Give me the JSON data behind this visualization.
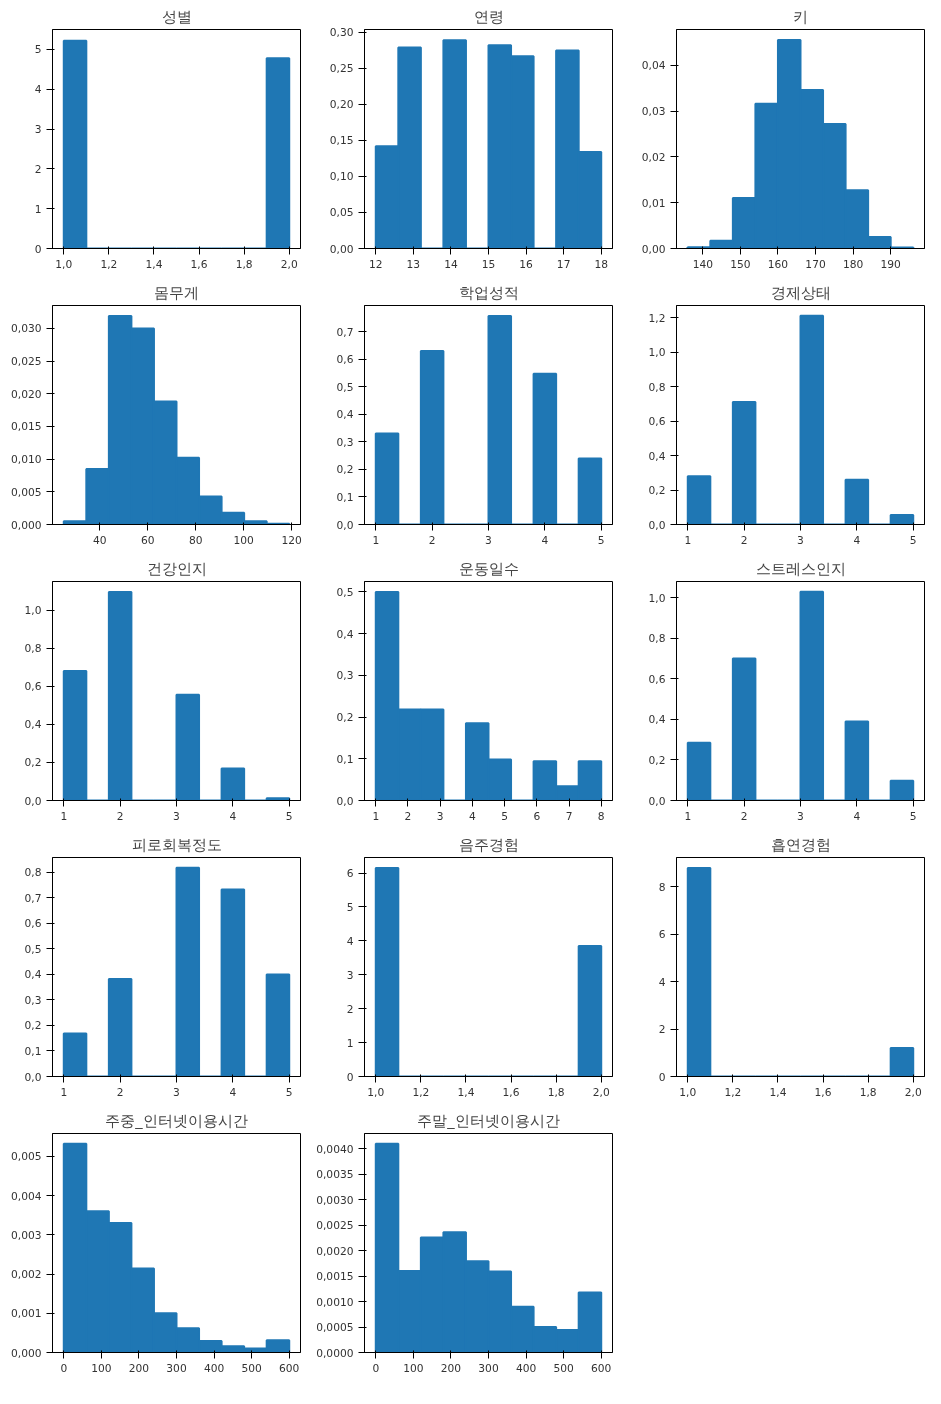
{
  "chart_data": [
    {
      "type": "histogram",
      "title": "성별",
      "color": "#1f77b4",
      "bins": [
        1.0,
        1.1,
        1.2,
        1.3,
        1.4,
        1.5,
        1.6,
        1.7,
        1.8,
        1.9,
        2.0
      ],
      "values": [
        5.22,
        0,
        0,
        0,
        0,
        0,
        0,
        0,
        0,
        4.78
      ],
      "xlim": [
        0.95,
        2.05
      ],
      "ylim": [
        0,
        5.5
      ],
      "xticks": [
        {
          "value": 1.0,
          "label": "1,0"
        },
        {
          "value": 1.2,
          "label": "1,2"
        },
        {
          "value": 1.4,
          "label": "1,4"
        },
        {
          "value": 1.6,
          "label": "1,6"
        },
        {
          "value": 1.8,
          "label": "1,8"
        },
        {
          "value": 2.0,
          "label": "2,0"
        }
      ],
      "yticks": [
        0,
        1,
        2,
        3,
        4,
        5
      ]
    },
    {
      "type": "histogram",
      "title": "연령",
      "color": "#1f77b4",
      "bins": [
        12,
        12.6,
        13.2,
        13.8,
        14.4,
        15,
        15.6,
        16.2,
        16.8,
        17.4,
        18
      ],
      "values": [
        0.142,
        0.279,
        0,
        0.289,
        0,
        0.282,
        0.267,
        0,
        0.275,
        0.134
      ],
      "xlim": [
        11.7,
        18.3
      ],
      "ylim": [
        0,
        0.304
      ],
      "xticks": [
        12,
        13,
        14,
        15,
        16,
        17,
        18
      ],
      "yticks": [
        {
          "value": 0,
          "label": "0,00"
        },
        {
          "value": 0.05,
          "label": "0,05"
        },
        {
          "value": 0.1,
          "label": "0,10"
        },
        {
          "value": 0.15,
          "label": "0,15"
        },
        {
          "value": 0.2,
          "label": "0,20"
        },
        {
          "value": 0.25,
          "label": "0,25"
        },
        {
          "value": 0.3,
          "label": "0,30"
        }
      ]
    },
    {
      "type": "histogram",
      "title": "키",
      "color": "#1f77b4",
      "bins": [
        136,
        142,
        148,
        154,
        160,
        166,
        172,
        178,
        184,
        190,
        196
      ],
      "values": [
        0.0003,
        0.0017,
        0.011,
        0.0316,
        0.0455,
        0.0346,
        0.0272,
        0.0127,
        0.0025,
        0.0002
      ],
      "xlim": [
        133,
        199
      ],
      "ylim": [
        0,
        0.0478
      ],
      "xticks": [
        140,
        150,
        160,
        170,
        180,
        190
      ],
      "yticks": [
        {
          "value": 0,
          "label": "0,00"
        },
        {
          "value": 0.01,
          "label": "0,01"
        },
        {
          "value": 0.02,
          "label": "0,02"
        },
        {
          "value": 0.03,
          "label": "0,03"
        },
        {
          "value": 0.04,
          "label": "0,04"
        }
      ]
    },
    {
      "type": "histogram",
      "title": "몸무게",
      "color": "#1f77b4",
      "bins": [
        25,
        34.4,
        43.8,
        53.2,
        62.6,
        72,
        81.4,
        90.8,
        100.2,
        109.6,
        119
      ],
      "values": [
        0.0005,
        0.0085,
        0.0319,
        0.03,
        0.0188,
        0.0102,
        0.0043,
        0.0018,
        0.0005,
        0.0001
      ],
      "xlim": [
        20.3,
        123.7
      ],
      "ylim": [
        0,
        0.0335
      ],
      "xticks": [
        40,
        60,
        80,
        100,
        120
      ],
      "yticks": [
        {
          "value": 0,
          "label": "0,000"
        },
        {
          "value": 0.005,
          "label": "0,005"
        },
        {
          "value": 0.01,
          "label": "0,010"
        },
        {
          "value": 0.015,
          "label": "0,015"
        },
        {
          "value": 0.02,
          "label": "0,020"
        },
        {
          "value": 0.025,
          "label": "0,025"
        },
        {
          "value": 0.03,
          "label": "0,030"
        }
      ]
    },
    {
      "type": "histogram",
      "title": "학업성적",
      "color": "#1f77b4",
      "bins": [
        1,
        1.4,
        1.8,
        2.2,
        2.6,
        3,
        3.4,
        3.8,
        4.2,
        4.6,
        5
      ],
      "values": [
        0.33,
        0,
        0.63,
        0,
        0,
        0.757,
        0,
        0.547,
        0,
        0.24
      ],
      "xlim": [
        0.8,
        5.2
      ],
      "ylim": [
        0,
        0.795
      ],
      "xticks": [
        1,
        2,
        3,
        4,
        5
      ],
      "yticks": [
        {
          "value": 0,
          "label": "0,0"
        },
        {
          "value": 0.1,
          "label": "0,1"
        },
        {
          "value": 0.2,
          "label": "0,2"
        },
        {
          "value": 0.3,
          "label": "0,3"
        },
        {
          "value": 0.4,
          "label": "0,4"
        },
        {
          "value": 0.5,
          "label": "0,5"
        },
        {
          "value": 0.6,
          "label": "0,6"
        },
        {
          "value": 0.7,
          "label": "0,7"
        }
      ]
    },
    {
      "type": "histogram",
      "title": "경제상태",
      "color": "#1f77b4",
      "bins": [
        1,
        1.4,
        1.8,
        2.2,
        2.6,
        3,
        3.4,
        3.8,
        4.2,
        4.6,
        5
      ],
      "values": [
        0.28,
        0,
        0.71,
        0,
        0,
        1.21,
        0,
        0.26,
        0,
        0.055
      ],
      "xlim": [
        0.8,
        5.2
      ],
      "ylim": [
        0,
        1.27
      ],
      "xticks": [
        1,
        2,
        3,
        4,
        5
      ],
      "yticks": [
        {
          "value": 0,
          "label": "0,0"
        },
        {
          "value": 0.2,
          "label": "0,2"
        },
        {
          "value": 0.4,
          "label": "0,4"
        },
        {
          "value": 0.6,
          "label": "0,6"
        },
        {
          "value": 0.8,
          "label": "0,8"
        },
        {
          "value": 1.0,
          "label": "1,0"
        },
        {
          "value": 1.2,
          "label": "1,2"
        }
      ]
    },
    {
      "type": "histogram",
      "title": "건강인지",
      "color": "#1f77b4",
      "bins": [
        1,
        1.4,
        1.8,
        2.2,
        2.6,
        3,
        3.4,
        3.8,
        4.2,
        4.6,
        5
      ],
      "values": [
        0.68,
        0,
        1.095,
        0,
        0,
        0.555,
        0,
        0.168,
        0,
        0.012
      ],
      "xlim": [
        0.8,
        5.2
      ],
      "ylim": [
        0,
        1.15
      ],
      "xticks": [
        1,
        2,
        3,
        4,
        5
      ],
      "yticks": [
        {
          "value": 0,
          "label": "0,0"
        },
        {
          "value": 0.2,
          "label": "0,2"
        },
        {
          "value": 0.4,
          "label": "0,4"
        },
        {
          "value": 0.6,
          "label": "0,6"
        },
        {
          "value": 0.8,
          "label": "0,8"
        },
        {
          "value": 1.0,
          "label": "1,0"
        }
      ]
    },
    {
      "type": "histogram",
      "title": "운동일수",
      "color": "#1f77b4",
      "bins": [
        1,
        1.7,
        2.4,
        3.1,
        3.8,
        4.5,
        5.2,
        5.9,
        6.6,
        7.3,
        8
      ],
      "values": [
        0.5,
        0.218,
        0.218,
        0,
        0.185,
        0.098,
        0,
        0.094,
        0.034,
        0.094
      ],
      "xlim": [
        0.65,
        8.35
      ],
      "ylim": [
        0,
        0.525
      ],
      "xticks": [
        1,
        2,
        3,
        4,
        5,
        6,
        7,
        8
      ],
      "yticks": [
        {
          "value": 0,
          "label": "0,0"
        },
        {
          "value": 0.1,
          "label": "0,1"
        },
        {
          "value": 0.2,
          "label": "0,2"
        },
        {
          "value": 0.3,
          "label": "0,3"
        },
        {
          "value": 0.4,
          "label": "0,4"
        },
        {
          "value": 0.5,
          "label": "0,5"
        }
      ]
    },
    {
      "type": "histogram",
      "title": "스트레스인지",
      "color": "#1f77b4",
      "bins": [
        1,
        1.4,
        1.8,
        2.2,
        2.6,
        3,
        3.4,
        3.8,
        4.2,
        4.6,
        5
      ],
      "values": [
        0.285,
        0,
        0.7,
        0,
        0,
        1.03,
        0,
        0.39,
        0,
        0.098
      ],
      "xlim": [
        0.8,
        5.2
      ],
      "ylim": [
        0,
        1.08
      ],
      "xticks": [
        1,
        2,
        3,
        4,
        5
      ],
      "yticks": [
        {
          "value": 0,
          "label": "0,0"
        },
        {
          "value": 0.2,
          "label": "0,2"
        },
        {
          "value": 0.4,
          "label": "0,4"
        },
        {
          "value": 0.6,
          "label": "0,6"
        },
        {
          "value": 0.8,
          "label": "0,8"
        },
        {
          "value": 1.0,
          "label": "1,0"
        }
      ]
    },
    {
      "type": "histogram",
      "title": "피로회복정도",
      "color": "#1f77b4",
      "bins": [
        1,
        1.4,
        1.8,
        2.2,
        2.6,
        3,
        3.4,
        3.8,
        4.2,
        4.6,
        5
      ],
      "values": [
        0.168,
        0,
        0.382,
        0,
        0,
        0.818,
        0,
        0.733,
        0,
        0.4
      ],
      "xlim": [
        0.8,
        5.2
      ],
      "ylim": [
        0,
        0.858
      ],
      "xticks": [
        1,
        2,
        3,
        4,
        5
      ],
      "yticks": [
        {
          "value": 0,
          "label": "0,0"
        },
        {
          "value": 0.1,
          "label": "0,1"
        },
        {
          "value": 0.2,
          "label": "0,2"
        },
        {
          "value": 0.3,
          "label": "0,3"
        },
        {
          "value": 0.4,
          "label": "0,4"
        },
        {
          "value": 0.5,
          "label": "0,5"
        },
        {
          "value": 0.6,
          "label": "0,6"
        },
        {
          "value": 0.7,
          "label": "0,7"
        },
        {
          "value": 0.8,
          "label": "0,8"
        }
      ]
    },
    {
      "type": "histogram",
      "title": "음주경험",
      "color": "#1f77b4",
      "bins": [
        1.0,
        1.1,
        1.2,
        1.3,
        1.4,
        1.5,
        1.6,
        1.7,
        1.8,
        1.9,
        2.0
      ],
      "values": [
        6.15,
        0,
        0,
        0,
        0,
        0,
        0,
        0,
        0,
        3.85
      ],
      "xlim": [
        0.95,
        2.05
      ],
      "ylim": [
        0,
        6.46
      ],
      "xticks": [
        {
          "value": 1.0,
          "label": "1,0"
        },
        {
          "value": 1.2,
          "label": "1,2"
        },
        {
          "value": 1.4,
          "label": "1,4"
        },
        {
          "value": 1.6,
          "label": "1,6"
        },
        {
          "value": 1.8,
          "label": "1,8"
        },
        {
          "value": 2.0,
          "label": "2,0"
        }
      ],
      "yticks": [
        0,
        1,
        2,
        3,
        4,
        5,
        6
      ]
    },
    {
      "type": "histogram",
      "title": "흡연경험",
      "color": "#1f77b4",
      "bins": [
        1.0,
        1.1,
        1.2,
        1.3,
        1.4,
        1.5,
        1.6,
        1.7,
        1.8,
        1.9,
        2.0
      ],
      "values": [
        8.8,
        0,
        0,
        0,
        0,
        0,
        0,
        0,
        0,
        1.2
      ],
      "xlim": [
        0.95,
        2.05
      ],
      "ylim": [
        0,
        9.24
      ],
      "xticks": [
        {
          "value": 1.0,
          "label": "1,0"
        },
        {
          "value": 1.2,
          "label": "1,2"
        },
        {
          "value": 1.4,
          "label": "1,4"
        },
        {
          "value": 1.6,
          "label": "1,6"
        },
        {
          "value": 1.8,
          "label": "1,8"
        },
        {
          "value": 2.0,
          "label": "2,0"
        }
      ],
      "yticks": [
        0,
        2,
        4,
        6,
        8
      ]
    },
    {
      "type": "histogram",
      "title": "주중_인터넷이용시간",
      "color": "#1f77b4",
      "bins": [
        0,
        60,
        120,
        180,
        240,
        300,
        360,
        420,
        480,
        540,
        600
      ],
      "values": [
        0.00532,
        0.0036,
        0.0033,
        0.00214,
        0.001,
        0.00062,
        0.00029,
        0.00016,
        0.0001,
        0.00031
      ],
      "xlim": [
        -30,
        630
      ],
      "ylim": [
        0,
        0.00558
      ],
      "xticks": [
        0,
        100,
        200,
        300,
        400,
        500,
        600
      ],
      "yticks": [
        {
          "value": 0,
          "label": "0,000"
        },
        {
          "value": 0.001,
          "label": "0,001"
        },
        {
          "value": 0.002,
          "label": "0,002"
        },
        {
          "value": 0.003,
          "label": "0,003"
        },
        {
          "value": 0.004,
          "label": "0,004"
        },
        {
          "value": 0.005,
          "label": "0,005"
        }
      ]
    },
    {
      "type": "histogram",
      "title": "주말_인터넷이용시간",
      "color": "#1f77b4",
      "bins": [
        0,
        60,
        120,
        180,
        240,
        300,
        360,
        420,
        480,
        540,
        600
      ],
      "values": [
        0.0041,
        0.0016,
        0.00226,
        0.00236,
        0.00179,
        0.00159,
        0.0009,
        0.0005,
        0.00044,
        0.00118
      ],
      "xlim": [
        -30,
        630
      ],
      "ylim": [
        0,
        0.0043
      ],
      "xticks": [
        0,
        100,
        200,
        300,
        400,
        500,
        600
      ],
      "yticks": [
        {
          "value": 0,
          "label": "0,0000"
        },
        {
          "value": 0.0005,
          "label": "0,0005"
        },
        {
          "value": 0.001,
          "label": "0,0010"
        },
        {
          "value": 0.0015,
          "label": "0,0015"
        },
        {
          "value": 0.002,
          "label": "0,0020"
        },
        {
          "value": 0.0025,
          "label": "0,0025"
        },
        {
          "value": 0.003,
          "label": "0,0030"
        },
        {
          "value": 0.0035,
          "label": "0,0035"
        },
        {
          "value": 0.004,
          "label": "0,0040"
        }
      ]
    }
  ]
}
